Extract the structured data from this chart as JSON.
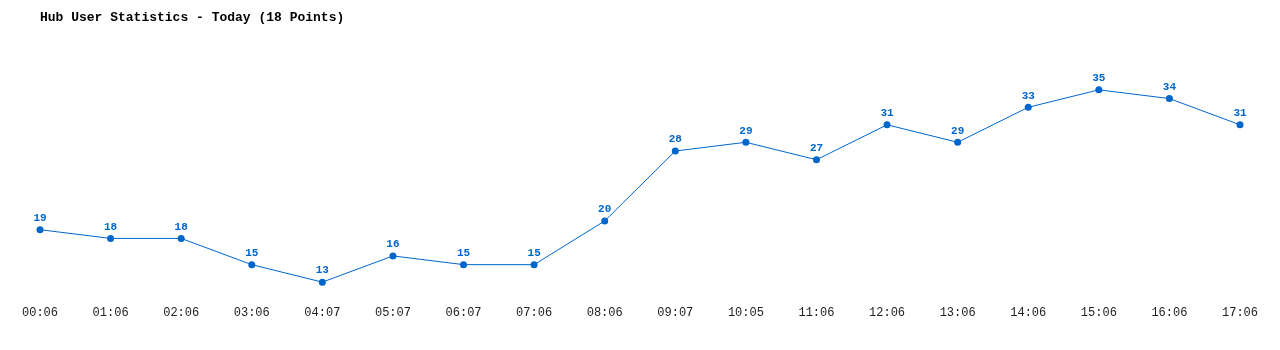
{
  "chart_data": {
    "type": "line",
    "title": "Hub User Statistics - Today (18 Points)",
    "categories": [
      "00:06",
      "01:06",
      "02:06",
      "03:06",
      "04:07",
      "05:07",
      "06:07",
      "07:06",
      "08:06",
      "09:07",
      "10:05",
      "11:06",
      "12:06",
      "13:06",
      "14:06",
      "15:06",
      "16:06",
      "17:06"
    ],
    "values": [
      19,
      18,
      18,
      15,
      13,
      16,
      15,
      15,
      20,
      28,
      29,
      27,
      31,
      29,
      33,
      35,
      34,
      31
    ],
    "color": "#0066cc",
    "data_labels": true,
    "marker": "circle",
    "line_style": "solid"
  }
}
